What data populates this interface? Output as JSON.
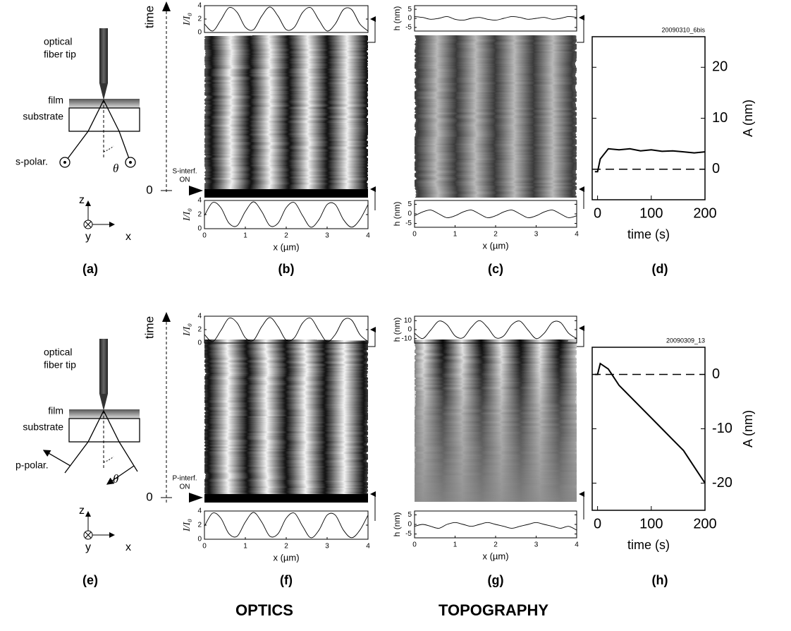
{
  "chart_data": [
    {
      "type": "line",
      "ylabel": "I/I₀",
      "x": [
        0,
        0.2,
        0.4,
        0.6,
        0.8,
        1,
        1.2,
        1.4,
        1.6,
        1.8,
        2,
        2.2,
        2.4,
        2.6,
        2.8,
        3,
        3.2,
        3.4,
        3.6,
        3.8,
        4
      ],
      "values": [
        1.28,
        0.22,
        1.85,
        3.7,
        2.99,
        0.78,
        0.42,
        2.44,
        3.8,
        2.44,
        0.42,
        0.78,
        2.99,
        3.7,
        1.85,
        0.22,
        1.28,
        3.42,
        3.42,
        1.28,
        0.22
      ],
      "xlim": [
        0,
        4
      ],
      "ylim": [
        0,
        4
      ],
      "yticks": [
        0,
        2,
        4
      ],
      "color": "#000000"
    },
    {
      "type": "line",
      "ylabel": "I/I₀",
      "xlabel": "x (µm)",
      "x": [
        0,
        0.2,
        0.4,
        0.6,
        0.8,
        1,
        1.2,
        1.4,
        1.6,
        1.8,
        2,
        2.2,
        2.4,
        2.6,
        2.8,
        3,
        3.2,
        3.4,
        3.6,
        3.8,
        4
      ],
      "values": [
        1.85,
        3.7,
        2.99,
        0.78,
        0.42,
        2.44,
        3.8,
        2.44,
        0.42,
        0.78,
        2.99,
        3.7,
        1.85,
        0.22,
        1.28,
        3.42,
        3.42,
        1.28,
        0.22,
        1.28,
        3.42
      ],
      "xlim": [
        0,
        4
      ],
      "ylim": [
        0,
        4
      ],
      "xticks": [
        0,
        1,
        2,
        3,
        4
      ],
      "yticks": [
        0,
        2,
        4
      ],
      "color": "#000000"
    },
    {
      "type": "line",
      "ylabel": "h (nm)",
      "x": [
        0,
        0.2,
        0.4,
        0.6,
        0.8,
        1,
        1.2,
        1.4,
        1.6,
        1.8,
        2,
        2.2,
        2.4,
        2.6,
        2.8,
        3,
        3.2,
        3.4,
        3.6,
        3.8,
        4
      ],
      "values": [
        1,
        0.5,
        -0.5,
        0,
        1,
        -0.5,
        -1,
        0,
        0.5,
        -0.5,
        -1,
        0,
        1,
        0.5,
        -0.5,
        0,
        0.5,
        -0.5,
        0,
        1,
        0.5
      ],
      "xlim": [
        0,
        4
      ],
      "ylim": [
        -7,
        7
      ],
      "yticks": [
        -5,
        0,
        5
      ],
      "color": "#000000"
    },
    {
      "type": "line",
      "ylabel": "h (nm)",
      "xlabel": "x (µm)",
      "x": [
        0,
        0.2,
        0.4,
        0.6,
        0.8,
        1,
        1.2,
        1.4,
        1.6,
        1.8,
        2,
        2.2,
        2.4,
        2.6,
        2.8,
        3,
        3.2,
        3.4,
        3.6,
        3.8,
        4
      ],
      "values": [
        -1,
        1,
        2,
        0,
        -2,
        -1,
        1,
        2,
        0,
        -2,
        -1,
        1,
        2,
        0,
        -2,
        -1,
        1,
        2,
        0,
        -2,
        -1
      ],
      "xlim": [
        0,
        4
      ],
      "ylim": [
        -7,
        7
      ],
      "xticks": [
        0,
        1,
        2,
        3,
        4
      ],
      "yticks": [
        -5,
        0,
        5
      ],
      "color": "#000000"
    },
    {
      "type": "line",
      "title": "20090310_6bis",
      "xlabel": "time (s)",
      "ylabel": "A (nm)",
      "x": [
        -5,
        0,
        5,
        20,
        40,
        60,
        80,
        100,
        120,
        140,
        160,
        180,
        200
      ],
      "values": [
        -0.5,
        -0.5,
        2,
        4,
        3.8,
        4,
        3.6,
        3.8,
        3.5,
        3.6,
        3.4,
        3.2,
        3.4
      ],
      "xlim": [
        -10,
        200
      ],
      "ylim": [
        -6,
        26
      ],
      "xticks": [
        0,
        100,
        200
      ],
      "yticks": [
        0,
        10,
        20
      ],
      "hline": 0,
      "y_axis_side": "right",
      "color": "#000000"
    },
    {
      "type": "line",
      "ylabel": "I/I₀",
      "x": [
        0,
        0.2,
        0.4,
        0.6,
        0.8,
        1,
        1.2,
        1.4,
        1.6,
        1.8,
        2,
        2.2,
        2.4,
        2.6,
        2.8,
        3,
        3.2,
        3.4,
        3.6,
        3.8,
        4
      ],
      "values": [
        1.28,
        0.22,
        1.85,
        3.7,
        2.99,
        0.78,
        0.42,
        2.44,
        3.8,
        2.44,
        0.42,
        0.78,
        2.99,
        3.7,
        1.85,
        0.22,
        1.28,
        3.42,
        3.42,
        1.28,
        0.22
      ],
      "xlim": [
        0,
        4
      ],
      "ylim": [
        0,
        4
      ],
      "yticks": [
        0,
        2,
        4
      ],
      "color": "#000000"
    },
    {
      "type": "line",
      "ylabel": "I/I₀",
      "xlabel": "x (µm)",
      "x": [
        0,
        0.2,
        0.4,
        0.6,
        0.8,
        1,
        1.2,
        1.4,
        1.6,
        1.8,
        2,
        2.2,
        2.4,
        2.6,
        2.8,
        3,
        3.2,
        3.4,
        3.6,
        3.8,
        4
      ],
      "values": [
        1.85,
        3.7,
        2.99,
        0.78,
        0.42,
        2.44,
        3.8,
        2.44,
        0.42,
        0.78,
        2.99,
        3.7,
        1.85,
        0.22,
        1.28,
        3.42,
        3.42,
        1.28,
        0.22,
        1.28,
        3.42
      ],
      "xlim": [
        0,
        4
      ],
      "ylim": [
        0,
        4
      ],
      "xticks": [
        0,
        1,
        2,
        3,
        4
      ],
      "yticks": [
        0,
        2,
        4
      ],
      "color": "#000000"
    },
    {
      "type": "line",
      "ylabel": "h (nm)",
      "x": [
        0,
        0.2,
        0.4,
        0.6,
        0.8,
        1,
        1.2,
        1.4,
        1.6,
        1.8,
        2,
        2.2,
        2.4,
        2.6,
        2.8,
        3,
        3.2,
        3.4,
        3.6,
        3.8,
        4
      ],
      "values": [
        -4,
        -10,
        -0.5,
        9.5,
        5.5,
        -7,
        -9,
        2.5,
        10,
        2.5,
        -9,
        -7,
        5.5,
        9.5,
        -0.5,
        -10,
        -4,
        8,
        8,
        -4,
        -10
      ],
      "xlim": [
        0,
        4
      ],
      "ylim": [
        -15,
        15
      ],
      "yticks": [
        -10,
        0,
        10
      ],
      "color": "#000000"
    },
    {
      "type": "line",
      "ylabel": "h (nm)",
      "xlabel": "x (µm)",
      "x": [
        0,
        0.2,
        0.4,
        0.6,
        0.8,
        1,
        1.2,
        1.4,
        1.6,
        1.8,
        2,
        2.2,
        2.4,
        2.6,
        2.8,
        3,
        3.2,
        3.4,
        3.6,
        3.8,
        4
      ],
      "values": [
        -1,
        0,
        -1,
        -2,
        0,
        1,
        0,
        -1,
        0,
        1,
        0,
        -1,
        -2,
        -1,
        0,
        1,
        0,
        -1,
        -2,
        -1,
        -3
      ],
      "xlim": [
        0,
        4
      ],
      "ylim": [
        -7,
        7
      ],
      "xticks": [
        0,
        1,
        2,
        3,
        4
      ],
      "yticks": [
        -5,
        0,
        5
      ],
      "color": "#000000"
    },
    {
      "type": "line",
      "title": "20090309_13",
      "xlabel": "time (s)",
      "ylabel": "A (nm)",
      "x": [
        -5,
        0,
        5,
        20,
        40,
        60,
        80,
        100,
        120,
        140,
        160,
        180,
        200
      ],
      "values": [
        0,
        0,
        2,
        1,
        -2,
        -4,
        -6,
        -8,
        -10,
        -12,
        -14,
        -17,
        -20
      ],
      "xlim": [
        -10,
        200
      ],
      "ylim": [
        -25,
        5
      ],
      "xticks": [
        0,
        100,
        200
      ],
      "yticks": [
        -20,
        -10,
        0
      ],
      "hline": 0,
      "y_axis_side": "right",
      "color": "#000000"
    }
  ],
  "diagrams": [
    {
      "fiber_label": [
        "optical",
        "fiber tip"
      ],
      "film": "film",
      "substrate": "substrate",
      "polarization": "s-polar.",
      "angle": "θ",
      "axes": [
        "z",
        "y",
        "x"
      ]
    },
    {
      "fiber_label": [
        "optical",
        "fiber tip"
      ],
      "film": "film",
      "substrate": "substrate",
      "polarization": "p-polar.",
      "angle": "θ",
      "axes": [
        "z",
        "y",
        "x"
      ]
    }
  ],
  "time_axes": [
    {
      "label": "time",
      "zero": "0",
      "event": [
        "S-interf.",
        "ON"
      ]
    },
    {
      "label": "time",
      "zero": "0",
      "event": [
        "P-interf.",
        "ON"
      ]
    }
  ],
  "panel_labels": [
    "(a)",
    "(b)",
    "(c)",
    "(d)",
    "(e)",
    "(f)",
    "(g)",
    "(h)"
  ],
  "footer": [
    "OPTICS",
    "TOPOGRAPHY"
  ]
}
